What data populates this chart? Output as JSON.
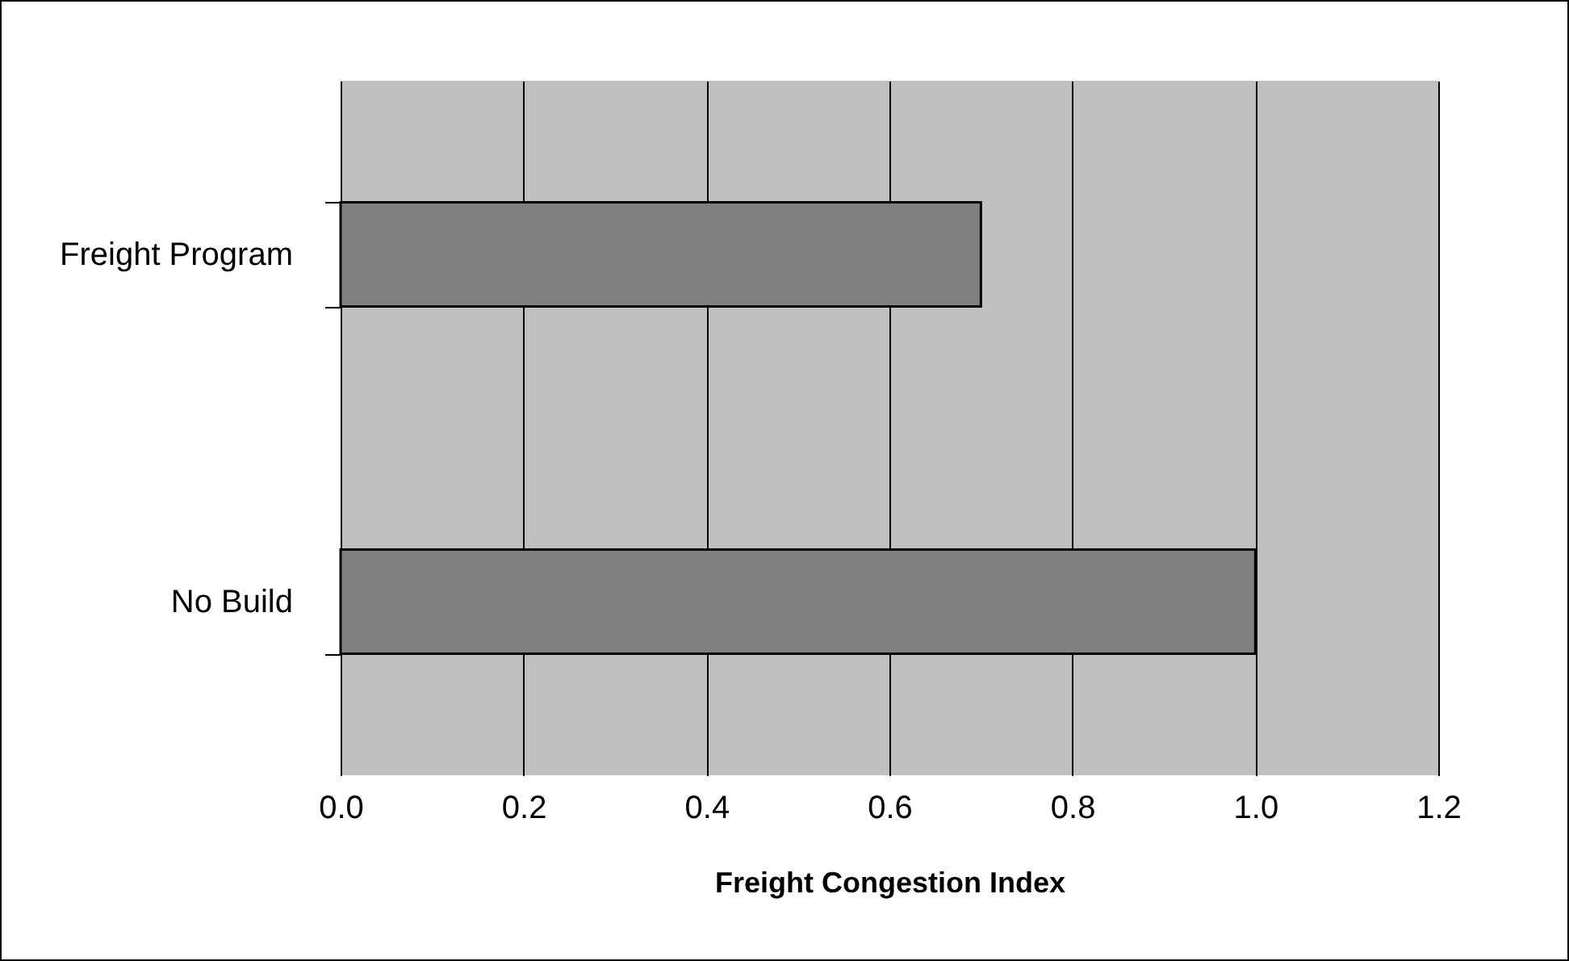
{
  "chart_data": {
    "type": "bar",
    "orientation": "horizontal",
    "xlabel": "Freight Congestion Index",
    "categories": [
      "Freight Program",
      "No Build"
    ],
    "values": [
      0.7,
      1.0
    ],
    "color": "#808080",
    "xlim": [
      0,
      1.2
    ],
    "xticks": [
      {
        "value": 0,
        "label": "0.0"
      },
      {
        "value": 0.2,
        "label": "0.2"
      },
      {
        "value": 0.4,
        "label": "0.4"
      },
      {
        "value": 0.6,
        "label": "0.6"
      },
      {
        "value": 0.8,
        "label": "0.8"
      },
      {
        "value": 1.0,
        "label": "1.0"
      },
      {
        "value": 1.2,
        "label": "1.2"
      }
    ],
    "grid": "x"
  }
}
